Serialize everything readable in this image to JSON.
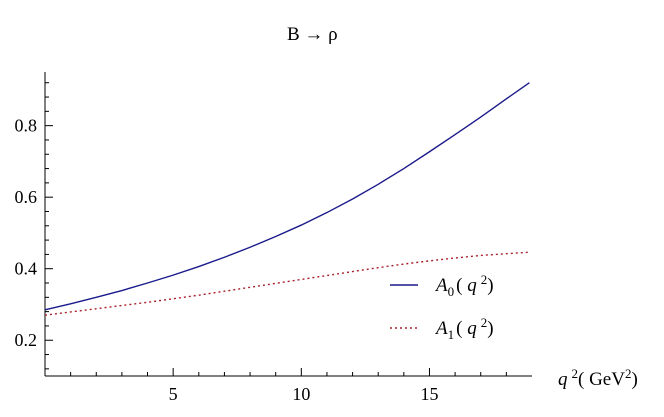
{
  "chart_data": {
    "type": "line",
    "title": "B → ρ",
    "xlabel": "q²( GeV²)",
    "ylabel": "",
    "xlim": [
      0,
      19
    ],
    "ylim": [
      0.1,
      0.95
    ],
    "x_ticks": [
      5,
      10,
      15
    ],
    "y_ticks": [
      0.2,
      0.4,
      0.6,
      0.8
    ],
    "x_tick_labels": [
      "5",
      "10",
      "15"
    ],
    "y_tick_labels": [
      "0.2",
      "0.4",
      "0.6",
      "0.8"
    ],
    "grid": false,
    "legend_position": "lower-right",
    "series": [
      {
        "name": "A0( q2)",
        "style": "solid",
        "color": "#1a1a8c",
        "x": [
          0,
          1,
          2,
          3,
          4,
          5,
          6,
          7,
          8,
          9,
          10,
          11,
          12,
          13,
          14,
          15,
          16,
          17,
          18,
          18.9
        ],
        "y": [
          0.285,
          0.302,
          0.32,
          0.339,
          0.36,
          0.382,
          0.406,
          0.432,
          0.46,
          0.49,
          0.522,
          0.557,
          0.595,
          0.636,
          0.68,
          0.727,
          0.775,
          0.824,
          0.875,
          0.92
        ]
      },
      {
        "name": "A1( q2)",
        "style": "dotted",
        "color": "#a8202a",
        "x": [
          0,
          1,
          2,
          3,
          4,
          5,
          6,
          7,
          8,
          9,
          10,
          11,
          12,
          13,
          14,
          15,
          16,
          17,
          18,
          18.9
        ],
        "y": [
          0.27,
          0.279,
          0.288,
          0.297,
          0.306,
          0.316,
          0.326,
          0.337,
          0.348,
          0.359,
          0.37,
          0.381,
          0.392,
          0.403,
          0.413,
          0.422,
          0.43,
          0.437,
          0.442,
          0.446
        ]
      }
    ],
    "legend": [
      {
        "base": "A",
        "sub": "0",
        "open": "( ",
        "var": "q",
        "sup": "2",
        "close": ")"
      },
      {
        "base": "A",
        "sub": "1",
        "open": "( ",
        "var": "q",
        "sup": "2",
        "close": ")"
      }
    ],
    "xlabel_parts": {
      "var": "q",
      "sup": "2",
      "open": "( GeV",
      "unit_sup": "2",
      "close": ")"
    }
  }
}
